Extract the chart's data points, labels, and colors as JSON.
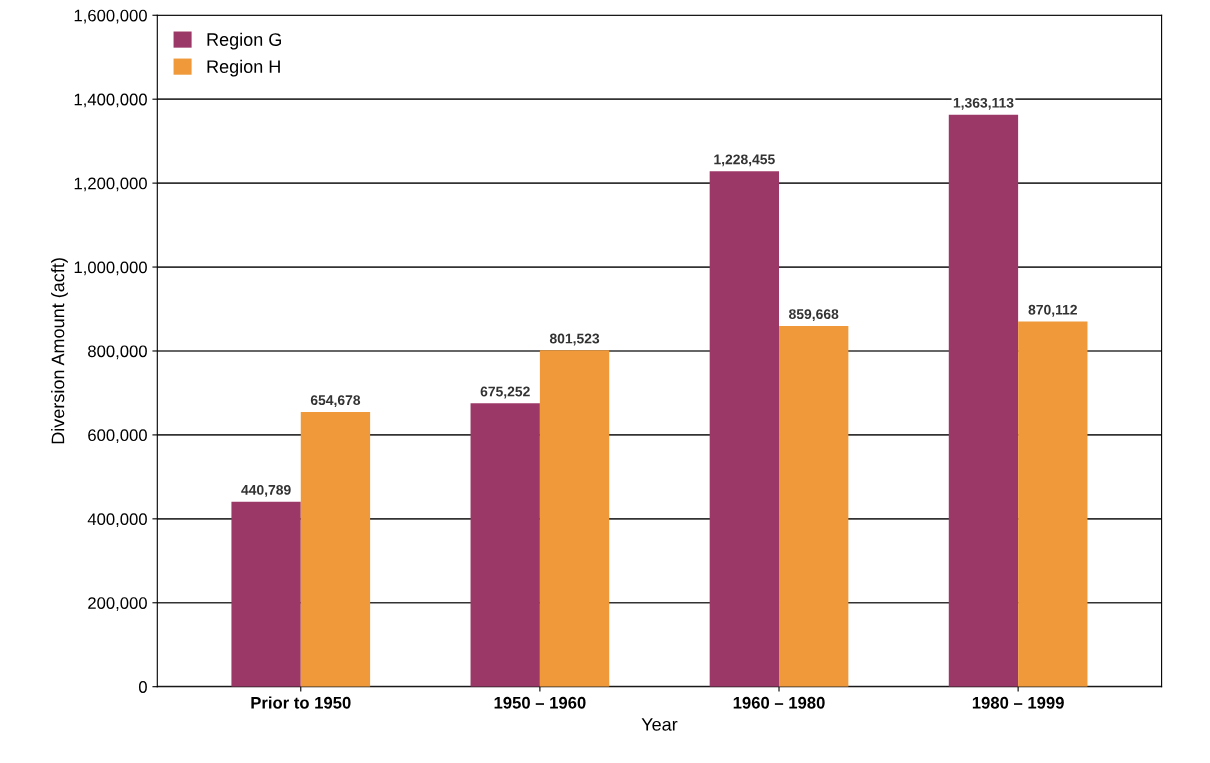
{
  "chart_data": {
    "type": "bar",
    "xlabel": "Year",
    "ylabel": "Diversion Amount (acft)",
    "categories": [
      "Prior to 1950",
      "1950 – 1960",
      "1960 – 1980",
      "1980 – 1999"
    ],
    "series": [
      {
        "name": "Region G",
        "color": "#9c3868",
        "values": [
          440789,
          675252,
          1228455,
          1363113
        ],
        "value_labels": [
          "440,789",
          "675,252",
          "1,228,455",
          "1,363,113"
        ]
      },
      {
        "name": "Region H",
        "color": "#ef993b",
        "values": [
          654678,
          801523,
          859668,
          870112
        ],
        "value_labels": [
          "654,678",
          "801,523",
          "859,668",
          "870,112"
        ]
      }
    ],
    "ylim": [
      0,
      1600000
    ],
    "yticks": [
      {
        "value": 0,
        "label": "0"
      },
      {
        "value": 200000,
        "label": "200,000"
      },
      {
        "value": 400000,
        "label": "400,000"
      },
      {
        "value": 600000,
        "label": "600,000"
      },
      {
        "value": 800000,
        "label": "800,000"
      },
      {
        "value": 1000000,
        "label": "1,000,000"
      },
      {
        "value": 1200000,
        "label": "1,200,000"
      },
      {
        "value": 1400000,
        "label": "1,400,000"
      },
      {
        "value": 1600000,
        "label": "1,600,000"
      }
    ],
    "grid": "y",
    "legend": "top left"
  }
}
